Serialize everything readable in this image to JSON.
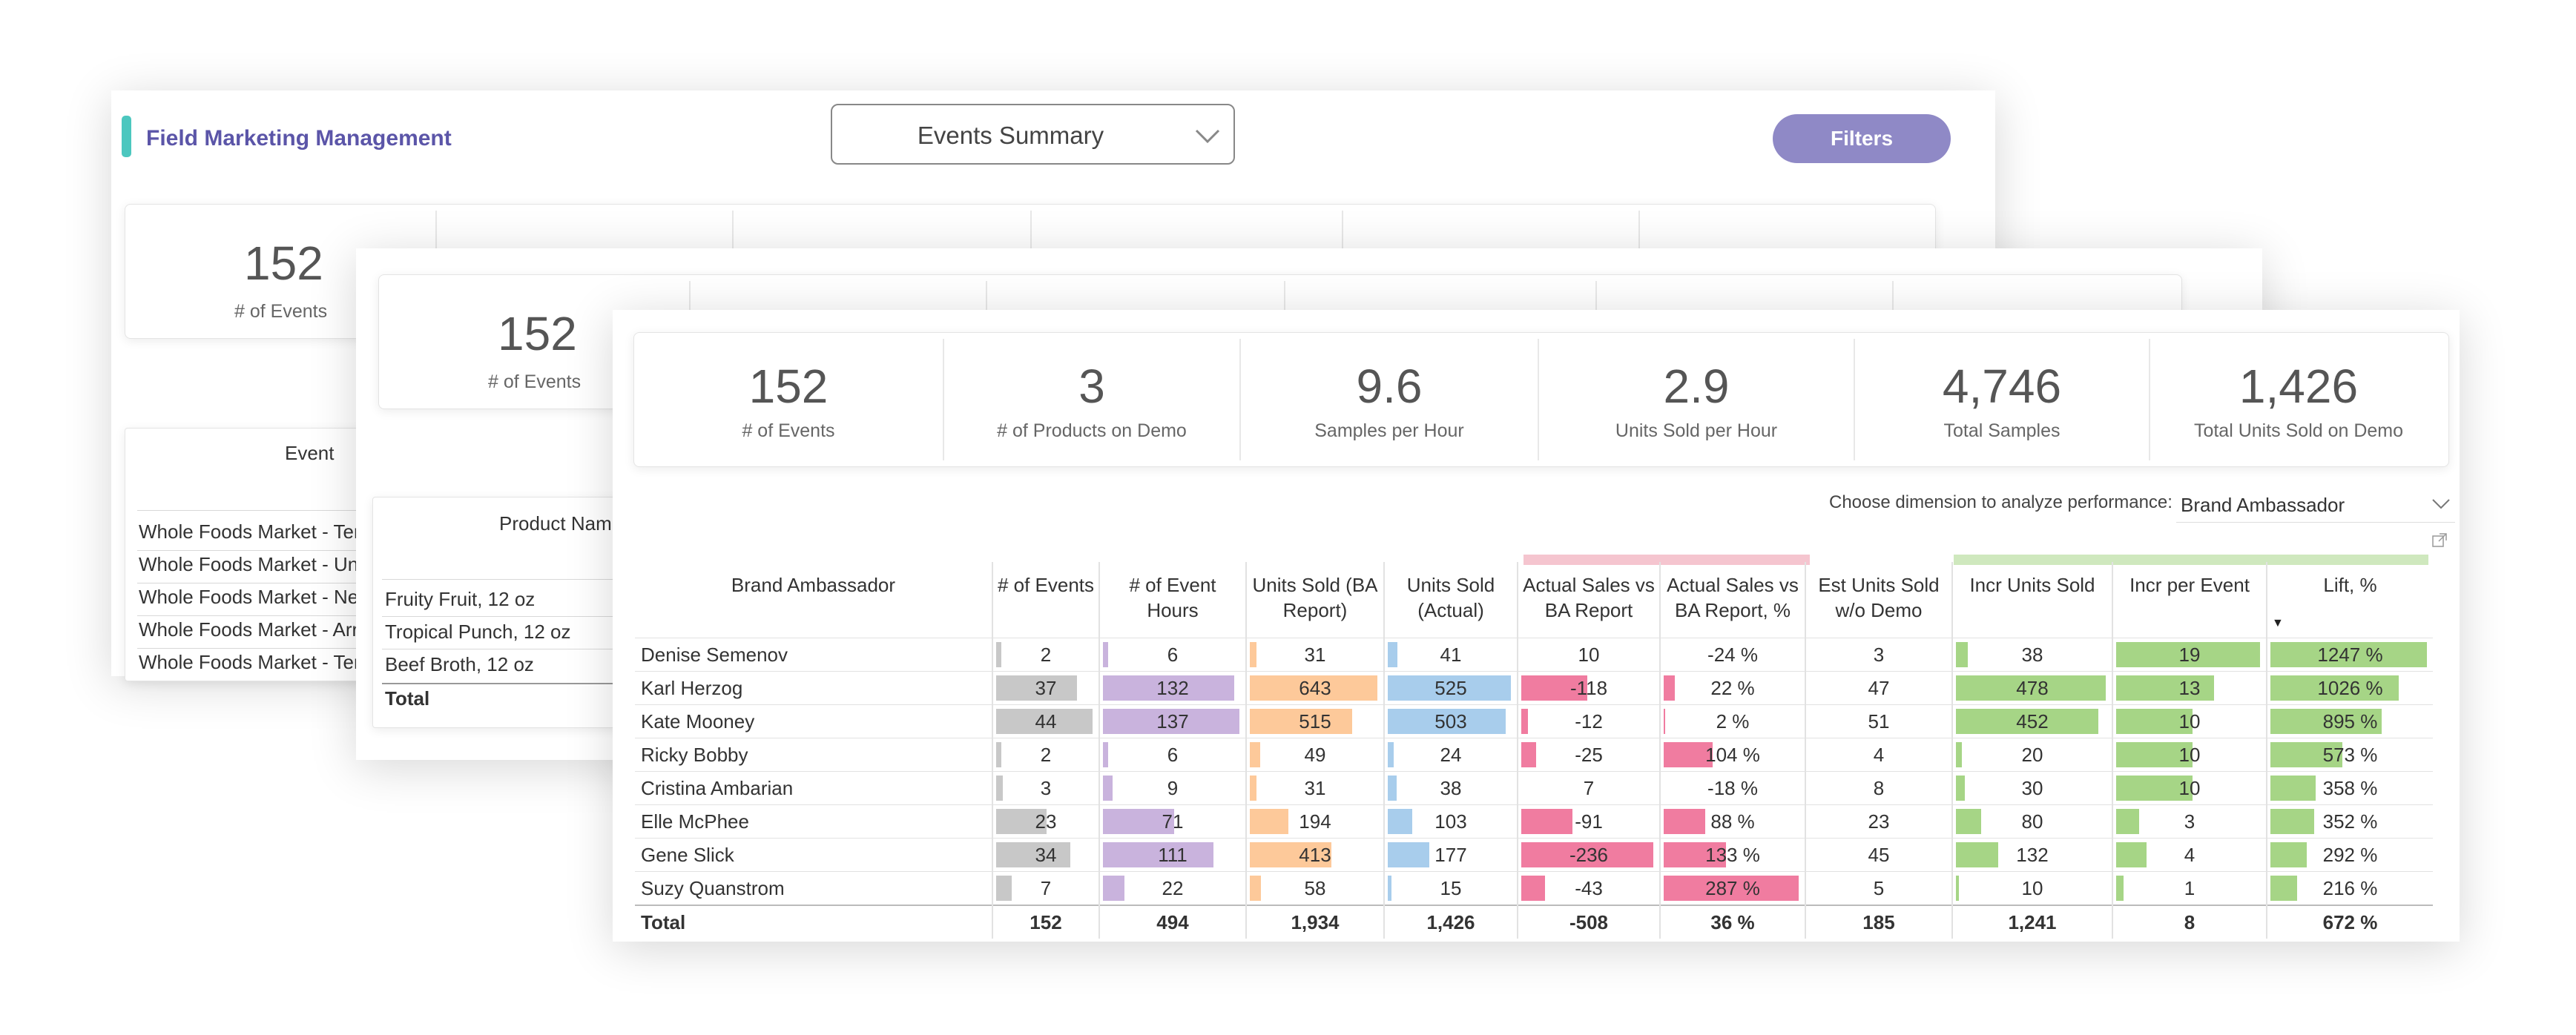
{
  "header": {
    "app_title": "Field Marketing Management",
    "view_select": "Events Summary",
    "filters_button": "Filters"
  },
  "kpis": [
    {
      "value": "152",
      "label": "# of Events"
    },
    {
      "value": "3",
      "label": "# of Products on Demo"
    },
    {
      "value": "9.6",
      "label": "Samples per Hour"
    },
    {
      "value": "2.9",
      "label": "Units Sold per Hour"
    },
    {
      "value": "4,746",
      "label": "Total Samples"
    },
    {
      "value": "1,426",
      "label": "Total Units Sold on Demo"
    }
  ],
  "back_card1": {
    "kpi_value": "152",
    "kpi_label": "# of Events",
    "column_header": "Event",
    "rows": [
      "Whole Foods Market - Ter",
      "Whole Foods Market - Un",
      "Whole Foods Market - Ne",
      "Whole Foods Market - Arr",
      "Whole Foods Market - Ter"
    ]
  },
  "back_card2": {
    "kpi_value": "152",
    "kpi_label": "# of Events",
    "column_header": "Product Nam",
    "rows": [
      "Fruity Fruit, 12 oz",
      "Tropical Punch, 12 oz",
      "Beef Broth, 12 oz"
    ],
    "total_label": "Total"
  },
  "dimension": {
    "label": "Choose dimension to analyze performance:",
    "value": "Brand Ambassador"
  },
  "table": {
    "columns": [
      "Brand Ambassador",
      "# of Events",
      "# of Event Hours",
      "Units Sold (BA Report)",
      "Units Sold (Actual)",
      "Actual Sales vs BA Report",
      "Actual Sales vs BA Report, %",
      "Est Units Sold w/o Demo",
      "Incr Units Sold",
      "Incr per Event",
      "Lift, %"
    ],
    "sorted_column_indicator": "▼",
    "rows": [
      [
        "Denise Semenov",
        "2",
        "6",
        "31",
        "41",
        "10",
        "-24 %",
        "3",
        "38",
        "19",
        "1247 %"
      ],
      [
        "Karl Herzog",
        "37",
        "132",
        "643",
        "525",
        "-118",
        "22 %",
        "47",
        "478",
        "13",
        "1026 %"
      ],
      [
        "Kate Mooney",
        "44",
        "137",
        "515",
        "503",
        "-12",
        "2 %",
        "51",
        "452",
        "10",
        "895 %"
      ],
      [
        "Ricky Bobby",
        "2",
        "6",
        "49",
        "24",
        "-25",
        "104 %",
        "4",
        "20",
        "10",
        "573 %"
      ],
      [
        "Cristina Ambarian",
        "3",
        "9",
        "31",
        "38",
        "7",
        "-18 %",
        "8",
        "30",
        "10",
        "358 %"
      ],
      [
        "Elle McPhee",
        "23",
        "71",
        "194",
        "103",
        "-91",
        "88 %",
        "23",
        "80",
        "3",
        "352 %"
      ],
      [
        "Gene Slick",
        "34",
        "111",
        "413",
        "177",
        "-236",
        "133 %",
        "45",
        "132",
        "4",
        "292 %"
      ],
      [
        "Suzy Quanstrom",
        "7",
        "22",
        "58",
        "15",
        "-43",
        "287 %",
        "5",
        "10",
        "1",
        "216 %"
      ]
    ],
    "total": [
      "Total",
      "152",
      "494",
      "1,934",
      "1,426",
      "-508",
      "36 %",
      "185",
      "1,241",
      "8",
      "672 %"
    ],
    "bar_fractions": [
      [
        0.05,
        0.04,
        0.05,
        0.08,
        0.0,
        0.0,
        0.0,
        0.08,
        1.0,
        1.0
      ],
      [
        0.84,
        0.96,
        1.0,
        1.0,
        0.5,
        0.08,
        0.0,
        1.0,
        0.68,
        0.82
      ],
      [
        1.0,
        1.0,
        0.8,
        0.96,
        0.05,
        0.01,
        0.0,
        0.95,
        0.53,
        0.71
      ],
      [
        0.05,
        0.04,
        0.08,
        0.05,
        0.11,
        0.36,
        0.0,
        0.04,
        0.53,
        0.46
      ],
      [
        0.07,
        0.07,
        0.05,
        0.07,
        0.0,
        0.0,
        0.0,
        0.06,
        0.53,
        0.29
      ],
      [
        0.52,
        0.52,
        0.3,
        0.2,
        0.39,
        0.31,
        0.0,
        0.17,
        0.16,
        0.28
      ],
      [
        0.77,
        0.81,
        0.64,
        0.34,
        1.0,
        0.46,
        0.0,
        0.28,
        0.21,
        0.23
      ],
      [
        0.16,
        0.16,
        0.09,
        0.03,
        0.18,
        1.0,
        0.0,
        0.02,
        0.05,
        0.17
      ]
    ],
    "bar_colors": [
      "#c8c8c8",
      "#c9b3dd",
      "#fdc99a",
      "#a8cdec",
      "#f07ca0",
      "#f07ca0",
      "",
      "#a6d586",
      "#a6d586",
      "#a6d586"
    ],
    "header_accent_colors": {
      "actual_sales": "#f5c5cf",
      "incremental": "#cfe8be"
    }
  },
  "colors": {
    "accent_teal": "#4cc7bf",
    "title_purple": "#5b55a8",
    "filters_purple": "#8f89c6"
  }
}
